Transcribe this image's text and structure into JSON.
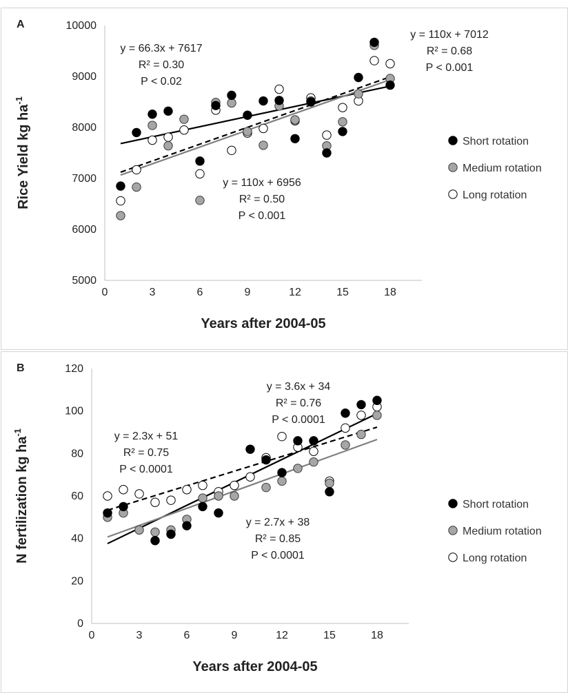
{
  "chart_data": [
    {
      "type": "scatter",
      "panel_label": "A",
      "xlabel": "Years after 2004-05",
      "ylabel": "Rice Yield kg ha",
      "ylabel_sup": "-1",
      "xlim": [
        0,
        20
      ],
      "ylim": [
        5000,
        10000
      ],
      "xticks": [
        "0",
        "3",
        "6",
        "9",
        "12",
        "15",
        "18"
      ],
      "yticks": [
        "5000",
        "6000",
        "7000",
        "8000",
        "9000",
        "10000"
      ],
      "legend_position": "right",
      "series": [
        {
          "name": "Short rotation",
          "marker": "filled-black",
          "x": [
            1,
            2,
            3,
            4,
            6,
            7,
            8,
            9,
            10,
            11,
            12,
            13,
            14,
            15,
            16,
            17,
            18
          ],
          "y": [
            6850,
            7900,
            8260,
            8320,
            7340,
            8430,
            8630,
            8240,
            8520,
            8530,
            7780,
            8500,
            7500,
            7920,
            8980,
            9670,
            8830
          ],
          "trend": {
            "slope": 66.3,
            "intercept": 7617,
            "line_style": "solid-black"
          }
        },
        {
          "name": "Medium rotation",
          "marker": "filled-gray",
          "x": [
            1,
            2,
            3,
            4,
            5,
            6,
            7,
            8,
            9,
            10,
            11,
            12,
            13,
            14,
            15,
            16,
            17,
            18
          ],
          "y": [
            6270,
            6830,
            8040,
            7640,
            8160,
            6570,
            8490,
            8480,
            7920,
            7650,
            8420,
            8150,
            8520,
            7640,
            8110,
            8660,
            9610,
            8960
          ],
          "trend": {
            "slope": 110,
            "intercept": 6956,
            "line_style": "solid-gray"
          }
        },
        {
          "name": "Long rotation",
          "marker": "open",
          "x": [
            1,
            2,
            3,
            4,
            5,
            6,
            7,
            8,
            9,
            10,
            11,
            12,
            13,
            14,
            15,
            16,
            17,
            18
          ],
          "y": [
            6560,
            7170,
            7750,
            7810,
            7950,
            7090,
            8340,
            7550,
            7890,
            7980,
            8750,
            8130,
            8580,
            7850,
            8390,
            8520,
            9310,
            9250
          ],
          "trend": {
            "slope": 110,
            "intercept": 7012,
            "line_style": "dashed-black"
          }
        }
      ],
      "annotations": [
        {
          "lines": [
            "y = 66.3x + 7617",
            "R² = 0.30",
            "P < 0.02"
          ]
        },
        {
          "lines": [
            "y = 110x + 7012",
            "R² = 0.68",
            "P < 0.001"
          ]
        },
        {
          "lines": [
            "y = 110x + 6956",
            "R² = 0.50",
            "P < 0.001"
          ]
        }
      ]
    },
    {
      "type": "scatter",
      "panel_label": "B",
      "xlabel": "Years after 2004-05",
      "ylabel": "N fertilization kg ha",
      "ylabel_sup": "-1",
      "xlim": [
        0,
        20
      ],
      "ylim": [
        0,
        120
      ],
      "xticks": [
        "0",
        "3",
        "6",
        "9",
        "12",
        "15",
        "18"
      ],
      "yticks": [
        "0",
        "20",
        "40",
        "60",
        "80",
        "100",
        "120"
      ],
      "legend_position": "right",
      "series": [
        {
          "name": "Short rotation",
          "marker": "filled-black",
          "x": [
            1,
            2,
            4,
            5,
            6,
            7,
            8,
            10,
            11,
            12,
            13,
            14,
            15,
            16,
            17,
            18
          ],
          "y": [
            52,
            55,
            39,
            42,
            46,
            55,
            52,
            82,
            77,
            71,
            86,
            86,
            62,
            99,
            103,
            105
          ],
          "trend": {
            "slope": 3.6,
            "intercept": 34,
            "line_style": "solid-black"
          }
        },
        {
          "name": "Medium rotation",
          "marker": "filled-gray",
          "x": [
            1,
            2,
            3,
            4,
            5,
            6,
            7,
            8,
            9,
            11,
            12,
            13,
            14,
            15,
            16,
            17,
            18
          ],
          "y": [
            50,
            52,
            44,
            43,
            44,
            49,
            59,
            60,
            60,
            64,
            67,
            73,
            76,
            66,
            84,
            89,
            98
          ],
          "trend": {
            "slope": 2.7,
            "intercept": 38,
            "line_style": "solid-gray"
          }
        },
        {
          "name": "Long rotation",
          "marker": "open",
          "x": [
            1,
            2,
            3,
            4,
            5,
            6,
            7,
            8,
            9,
            10,
            11,
            12,
            13,
            14,
            15,
            16,
            17,
            18
          ],
          "y": [
            60,
            63,
            61,
            57,
            58,
            63,
            65,
            62,
            65,
            69,
            78,
            88,
            83,
            81,
            67,
            92,
            98,
            102
          ],
          "trend": {
            "slope": 2.3,
            "intercept": 51,
            "line_style": "dashed-black"
          }
        }
      ],
      "annotations": [
        {
          "lines": [
            "y = 3.6x + 34",
            "R² = 0.76",
            "P < 0.0001"
          ]
        },
        {
          "lines": [
            "y = 2.3x + 51",
            "R² = 0.75",
            "P < 0.0001"
          ]
        },
        {
          "lines": [
            "y = 2.7x + 38",
            "R² = 0.85",
            "P < 0.0001"
          ]
        }
      ]
    }
  ]
}
